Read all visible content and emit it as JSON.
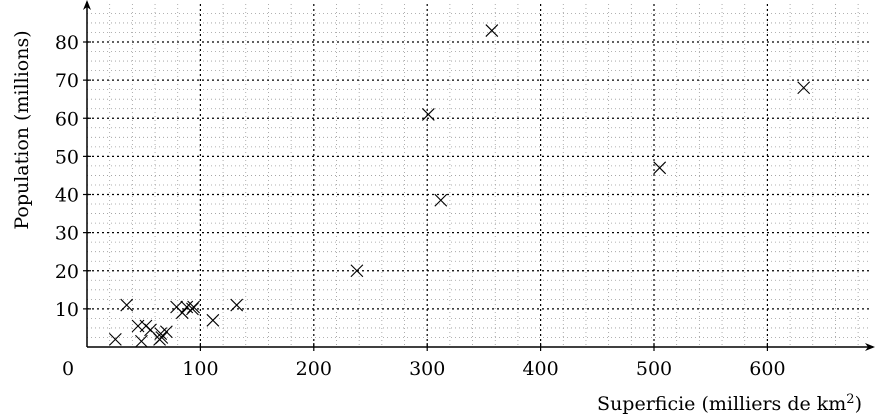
{
  "chart_data": {
    "type": "scatter",
    "xlabel": "Superficie (milliers de km",
    "xlabel_sup": "2",
    "xlabel_end": ")",
    "ylabel": "Population (millions)",
    "xlim": [
      0,
      690
    ],
    "ylim": [
      0,
      88
    ],
    "x_ticks": [
      0,
      100,
      200,
      300,
      400,
      500,
      600
    ],
    "y_ticks": [
      10,
      20,
      30,
      40,
      50,
      60,
      70,
      80
    ],
    "grid": {
      "major": true,
      "minor": true,
      "style": "dotted"
    },
    "marker": "x",
    "points": [
      {
        "x": 25,
        "y": 2
      },
      {
        "x": 35,
        "y": 11
      },
      {
        "x": 45,
        "y": 5.5
      },
      {
        "x": 48,
        "y": 1.5
      },
      {
        "x": 52,
        "y": 5.5
      },
      {
        "x": 56,
        "y": 4.5
      },
      {
        "x": 64,
        "y": 2
      },
      {
        "x": 65,
        "y": 3.5
      },
      {
        "x": 66,
        "y": 2.5
      },
      {
        "x": 70,
        "y": 4
      },
      {
        "x": 79,
        "y": 10.5
      },
      {
        "x": 84,
        "y": 9
      },
      {
        "x": 88,
        "y": 10.5
      },
      {
        "x": 93,
        "y": 10
      },
      {
        "x": 94,
        "y": 10.5
      },
      {
        "x": 111,
        "y": 7
      },
      {
        "x": 132,
        "y": 11
      },
      {
        "x": 238,
        "y": 20
      },
      {
        "x": 301,
        "y": 61
      },
      {
        "x": 312,
        "y": 38.5
      },
      {
        "x": 357,
        "y": 83
      },
      {
        "x": 505,
        "y": 47
      },
      {
        "x": 632,
        "y": 68
      }
    ]
  }
}
